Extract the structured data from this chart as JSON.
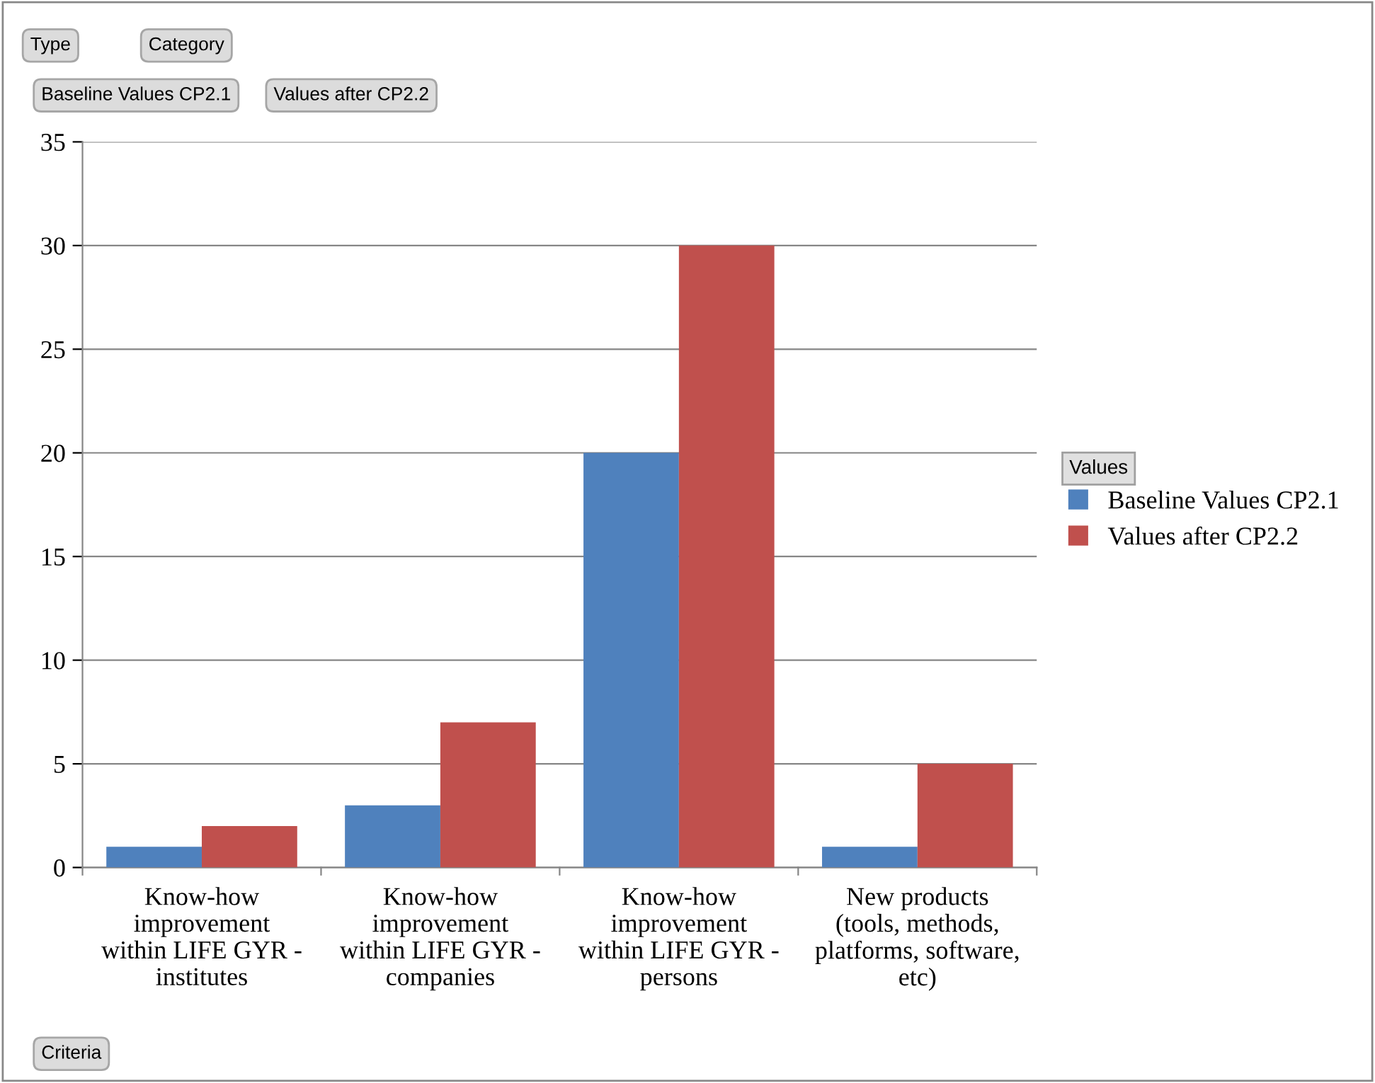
{
  "chart_data": {
    "type": "bar",
    "categories": [
      "Know-how\nimprovement\nwithin LIFE GYR -\ninstitutes",
      "Know-how\nimprovement\nwithin LIFE GYR -\ncompanies",
      "Know-how\nimprovement\nwithin LIFE GYR -\npersons",
      "New products\n(tools, methods,\nplatforms, software,\netc)"
    ],
    "series": [
      {
        "name": "Baseline Values CP2.1",
        "color": "#4f81bd",
        "values": [
          1,
          3,
          20,
          1
        ]
      },
      {
        "name": "Values after CP2.2",
        "color": "#c0504d",
        "values": [
          2,
          7,
          30,
          5
        ]
      }
    ],
    "ylim": [
      0,
      35
    ],
    "yticks": [
      0,
      5,
      10,
      15,
      20,
      25,
      30,
      35
    ],
    "grid": "y",
    "legend": "right",
    "legend_title": "Values",
    "annotations": [
      "Type",
      "Category",
      "Baseline Values CP2.1",
      "Values after CP2.2",
      "Criteria"
    ]
  }
}
